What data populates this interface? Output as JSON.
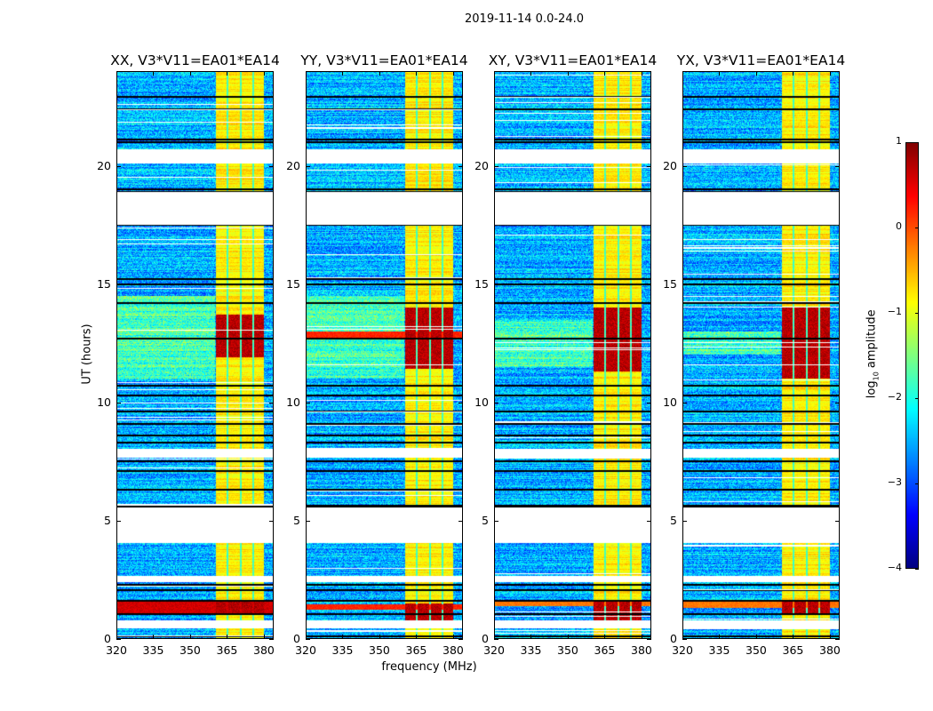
{
  "chart_data": {
    "type": "heatmap",
    "title": "2019-11-14 0.0-24.0",
    "xlabel": "frequency (MHz)",
    "ylabel": "UT (hours)",
    "xlim": [
      320,
      384
    ],
    "ylim": [
      0,
      24
    ],
    "xticks": [
      "320",
      "335",
      "350",
      "365",
      "380"
    ],
    "xtick_values": [
      320,
      335,
      350,
      365,
      380
    ],
    "yticks": [
      "0",
      "5",
      "10",
      "15",
      "20"
    ],
    "ytick_values": [
      0,
      5,
      10,
      15,
      20
    ],
    "colormap": "jet",
    "colorbar": {
      "label_prefix": "log",
      "label_sub": "10",
      "label_suffix": " amplitude",
      "range": [
        -4,
        1
      ],
      "ticks": [
        "1",
        "0",
        "−1",
        "−2",
        "−3",
        "−4"
      ],
      "tick_values": [
        1,
        0,
        -1,
        -2,
        -3,
        -4
      ]
    },
    "background_level": -2.5,
    "rfi_band_mhz": [
      360.5,
      380
    ],
    "rfi_subband_gaps_mhz": [
      365.3,
      370.6,
      375.8
    ],
    "rfi_band_level": -0.8,
    "flagged_gaps_hours": [
      [
        20.1,
        20.7
      ],
      [
        17.5,
        18.9
      ],
      [
        7.65,
        8.05
      ],
      [
        4.05,
        5.55
      ],
      [
        2.4,
        2.65
      ],
      [
        0.45,
        0.8
      ]
    ],
    "black_rows_hours": [
      0.1,
      1.05,
      1.6,
      2.05,
      2.3,
      5.55,
      5.62,
      6.3,
      7.1,
      7.5,
      8.3,
      8.6,
      9.1,
      9.6,
      10.3,
      10.7,
      12.7,
      14.2,
      15.0,
      15.2,
      17.5,
      18.9,
      19.0,
      21.0,
      21.1,
      22.4,
      22.9
    ],
    "panels": [
      {
        "title": "XX, V3*V11=EA01*EA14",
        "strong_rfi_hours": [
          [
            11.9,
            13.7
          ],
          [
            1.0,
            1.6
          ]
        ],
        "broadband_hours": [
          [
            1.05,
            1.6
          ]
        ],
        "broadband_level": 0.6,
        "quiet_green_hours": [
          11.0,
          14.5
        ]
      },
      {
        "title": "YY, V3*V11=EA01*EA14",
        "strong_rfi_hours": [
          [
            11.4,
            14.0
          ],
          [
            0.75,
            1.5
          ]
        ],
        "broadband_hours": [
          [
            12.7,
            13.0
          ],
          [
            1.25,
            1.45
          ]
        ],
        "broadband_level": 0.2,
        "quiet_green_hours": [
          11.0,
          14.5
        ]
      },
      {
        "title": "XY, V3*V11=EA01*EA14",
        "strong_rfi_hours": [
          [
            11.3,
            14.0
          ],
          [
            0.8,
            1.6
          ]
        ],
        "broadband_hours": [
          [
            1.4,
            1.6
          ]
        ],
        "broadband_level": -0.2,
        "quiet_green_hours": [
          11.5,
          13.5
        ]
      },
      {
        "title": "YX, V3*V11=EA01*EA14",
        "strong_rfi_hours": [
          [
            11.0,
            14.0
          ],
          [
            1.0,
            1.6
          ]
        ],
        "broadband_hours": [
          [
            1.3,
            1.6
          ]
        ],
        "broadband_level": -0.2,
        "quiet_green_hours": [
          12.0,
          13.0
        ]
      }
    ]
  }
}
